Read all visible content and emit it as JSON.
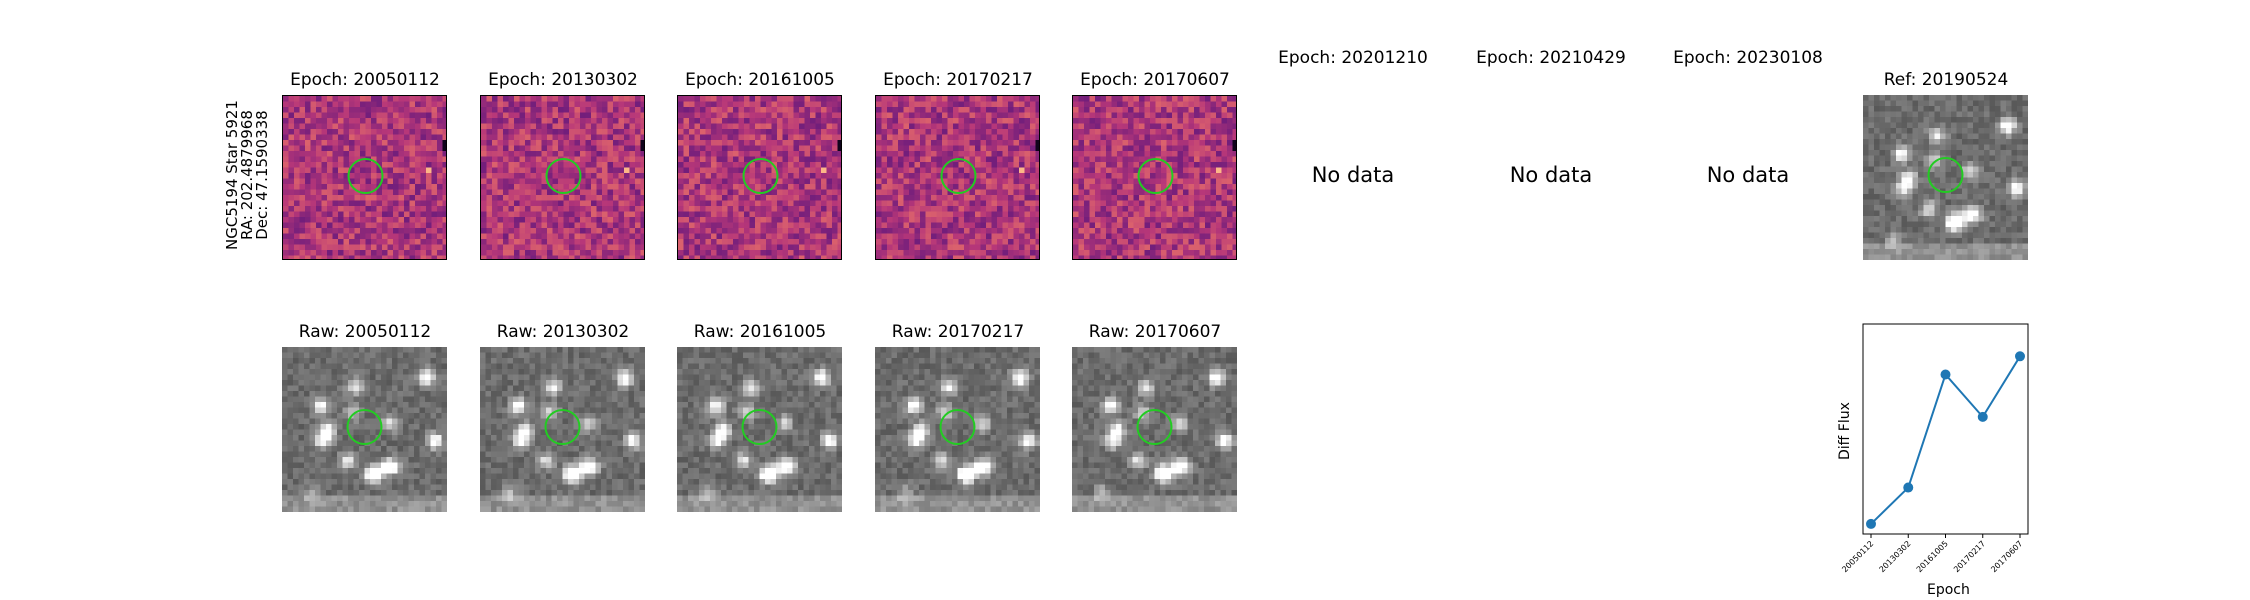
{
  "target": {
    "name": "NGC5194 Star 5921",
    "ra": "RA: 202.4879968",
    "dec": "Dec: 47.1590338"
  },
  "epoch_titles": [
    "Epoch: 20050112",
    "Epoch: 20130302",
    "Epoch: 20161005",
    "Epoch: 20170217",
    "Epoch: 20170607",
    "Epoch: 20201210",
    "Epoch: 20210429",
    "Epoch: 20230108"
  ],
  "ref_title": "Ref: 20190524",
  "no_data_text": "No data",
  "raw_titles": [
    "Raw: 20050112",
    "Raw: 20130302",
    "Raw: 20161005",
    "Raw: 20170217",
    "Raw: 20170607"
  ],
  "colors": {
    "circle": "#22cc22",
    "line": "#1f77b4"
  },
  "chart_data": {
    "type": "line",
    "title": "",
    "xlabel": "Epoch",
    "ylabel": "Diff Flux",
    "categories": [
      "20050112",
      "20130302",
      "20161005",
      "20170217",
      "20170607"
    ],
    "values": [
      0.0,
      0.18,
      0.74,
      0.53,
      0.83
    ],
    "ylim": [
      -0.05,
      0.99
    ],
    "grid": false
  }
}
